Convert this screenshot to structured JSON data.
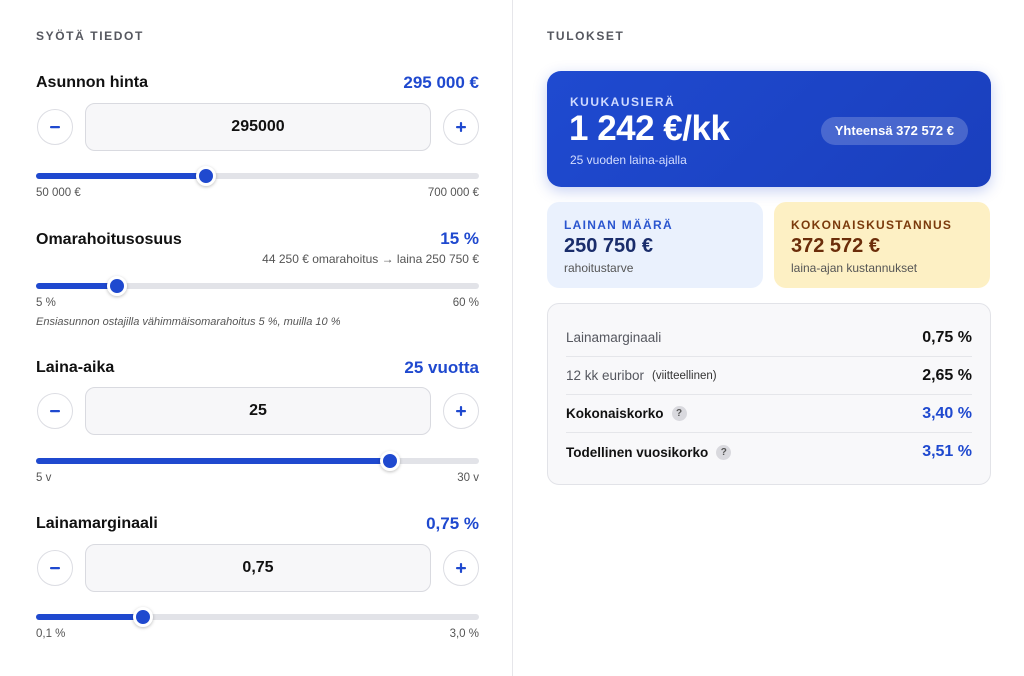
{
  "left": {
    "title": "SYÖTÄ TIEDOT",
    "fields": [
      {
        "label": "Asunnon hinta",
        "display": "295 000 €",
        "input_value": "295000",
        "min_label": "50 000 €",
        "max_label": "700 000 €",
        "fraction": 0.3846,
        "has_input": true
      },
      {
        "label": "Omarahoitusosuus",
        "display": "15 %",
        "note": "44 250 € omarahoitus → laina 250 750 €",
        "min_label": "5 %",
        "max_label": "60 %",
        "fraction": 0.1818,
        "hint": "Ensiasunnon ostajilla vähimmäisomarahoitus 5 %, muilla 10 %",
        "has_input": false
      },
      {
        "label": "Laina-aika",
        "display": "25 vuotta",
        "input_value": "25",
        "min_label": "5 v",
        "max_label": "30 v",
        "fraction": 0.8,
        "has_input": true
      },
      {
        "label": "Lainamarginaali",
        "display": "0,75 %",
        "input_value": "0,75",
        "min_label": "0,1 %",
        "max_label": "3,0 %",
        "fraction": 0.2414,
        "has_input": true
      }
    ]
  },
  "right": {
    "title": "TULOKSET",
    "monthly": {
      "label": "KUUKAUSIERÄ",
      "amount": "1 242 €/kk",
      "sub": "25 vuoden laina-ajalla",
      "total_pill": "Yhteensä 372 572 €"
    },
    "loan_card": {
      "label": "LAINAN MÄÄRÄ",
      "amount": "250 750 €",
      "sub": "rahoitustarve"
    },
    "cost_card": {
      "label": "KOKONAISKUSTANNUS",
      "amount": "372 572 €",
      "sub": "laina-ajan kustannukset"
    },
    "rates": [
      {
        "label": "Lainamarginaali",
        "note": "",
        "value": "0,75 %"
      },
      {
        "label": "12 kk euribor",
        "note": "(viitteellinen)",
        "value": "2,65 %"
      },
      {
        "label": "Kokonaiskorko",
        "note": "",
        "value": "3,40 %"
      },
      {
        "label": "Todellinen vuosikorko",
        "note": "",
        "value": "3,51 %"
      }
    ]
  },
  "icons": {
    "minus": "minus-icon",
    "plus": "plus-icon",
    "help": "question-icon",
    "help_glyph": "?"
  },
  "colors": {
    "accent": "#1f49cf",
    "loan_card_bg": "#eaf1fd",
    "cost_card_bg": "#fdf0c4"
  }
}
